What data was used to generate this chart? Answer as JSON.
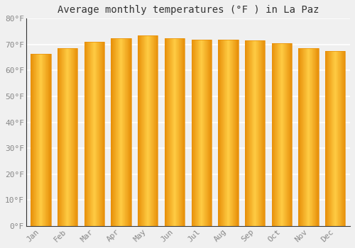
{
  "title": "Average monthly temperatures (°F ) in La Paz",
  "months": [
    "Jan",
    "Feb",
    "Mar",
    "Apr",
    "May",
    "Jun",
    "Jul",
    "Aug",
    "Sep",
    "Oct",
    "Nov",
    "Dec"
  ],
  "values": [
    66.5,
    68.5,
    71.0,
    72.5,
    73.5,
    72.5,
    72.0,
    72.0,
    71.5,
    70.5,
    68.5,
    67.5
  ],
  "bar_color_center": "#FFCC44",
  "bar_color_edge": "#E8900A",
  "ylim": [
    0,
    80
  ],
  "ytick_step": 10,
  "background_color": "#f0f0f0",
  "plot_bg_color": "#f0f0f0",
  "grid_color": "#ffffff",
  "title_fontsize": 10,
  "tick_fontsize": 8,
  "font_family": "monospace",
  "tick_color": "#888888",
  "title_color": "#333333",
  "bar_width": 0.75
}
